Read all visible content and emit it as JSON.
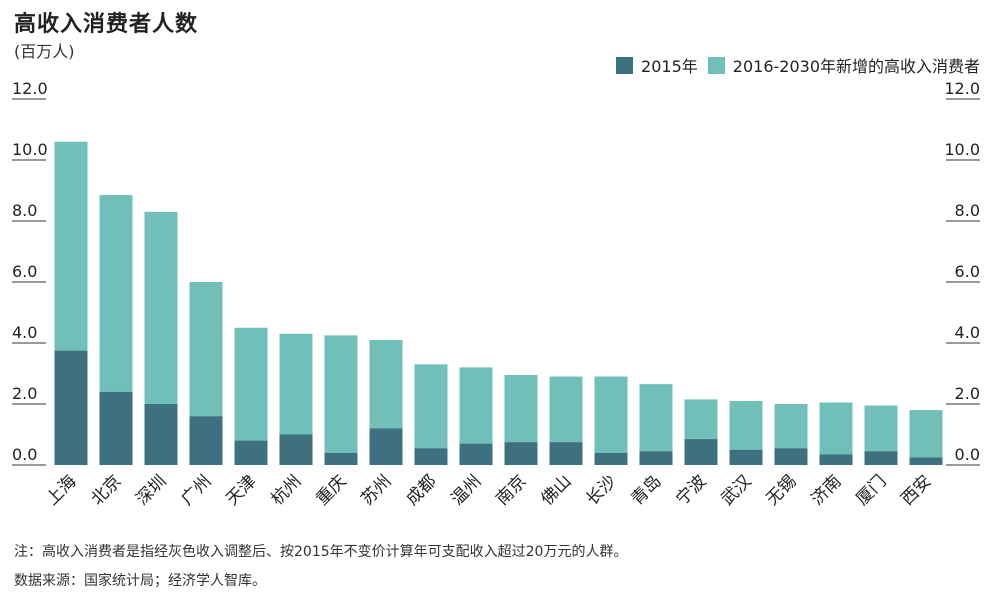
{
  "header": {
    "title": "高收入消费者人数",
    "unit": "(百万人)"
  },
  "colors": {
    "base": "#3e717f",
    "growth": "#70bfb8",
    "grid": "#333333"
  },
  "legend": [
    {
      "label": "2015年",
      "color": "#3e717f"
    },
    {
      "label": "2016-2030年新增的高收入消费者",
      "color": "#70bfb8"
    }
  ],
  "chart_data": {
    "type": "bar",
    "stacked": true,
    "categories": [
      "上海",
      "北京",
      "深圳",
      "广州",
      "天津",
      "杭州",
      "重庆",
      "苏州",
      "成都",
      "温州",
      "南京",
      "佛山",
      "长沙",
      "青岛",
      "宁波",
      "武汉",
      "无锡",
      "济南",
      "厦门",
      "西安"
    ],
    "series": [
      {
        "name": "2015年",
        "values": [
          3.75,
          2.4,
          2.0,
          1.6,
          0.8,
          1.0,
          0.4,
          1.2,
          0.55,
          0.7,
          0.75,
          0.75,
          0.4,
          0.45,
          0.85,
          0.5,
          0.55,
          0.35,
          0.45,
          0.25
        ]
      },
      {
        "name": "2016-2030年新增的高收入消费者",
        "values": [
          6.85,
          6.45,
          6.3,
          4.4,
          3.7,
          3.3,
          3.85,
          2.9,
          2.75,
          2.5,
          2.2,
          2.15,
          2.5,
          2.2,
          1.3,
          1.6,
          1.45,
          1.7,
          1.5,
          1.55
        ]
      }
    ],
    "yticks": [
      "0.0",
      "2.0",
      "4.0",
      "6.0",
      "8.0",
      "10.0",
      "12.0"
    ],
    "ylim": [
      0,
      12
    ],
    "grid": false,
    "legend_position": "top-right"
  },
  "notes": {
    "note1": "注：高收入消费者是指经灰色收入调整后、按2015年不变价计算年可支配收入超过20万元的人群。",
    "source": "数据来源：国家统计局；经济学人智库。"
  }
}
